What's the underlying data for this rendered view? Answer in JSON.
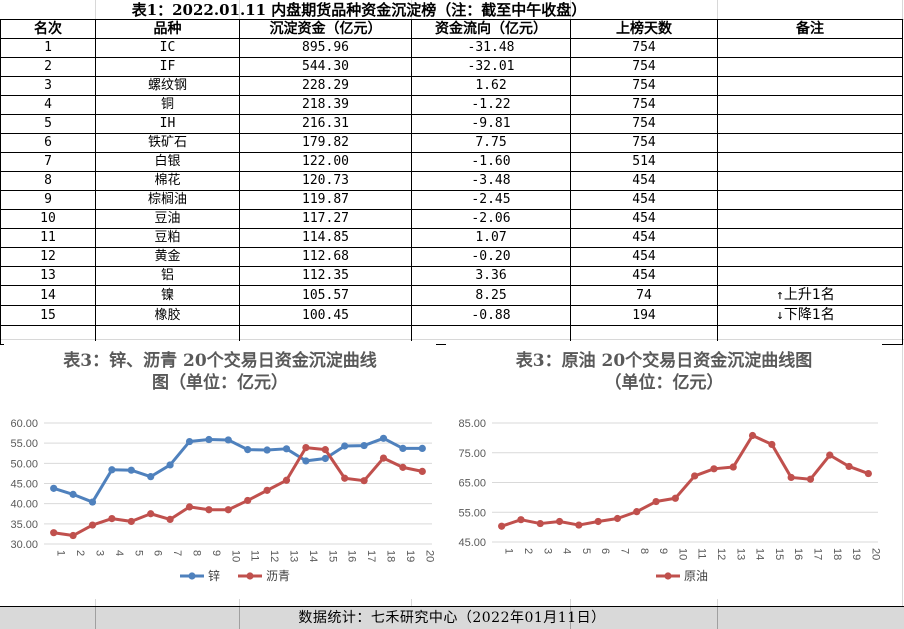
{
  "sheet": {
    "title": "表1：2022.01.11 内盘期货品种资金沉淀榜（注：截至中午收盘）",
    "headers": [
      "名次",
      "品种",
      "沉淀资金（亿元）",
      "资金流向（亿元）",
      "上榜天数",
      "备注"
    ],
    "rows": [
      {
        "rank": "1",
        "name": "IC",
        "fund": "895.96",
        "flow": "-31.48",
        "days": "754",
        "note": ""
      },
      {
        "rank": "2",
        "name": "IF",
        "fund": "544.30",
        "flow": "-32.01",
        "days": "754",
        "note": ""
      },
      {
        "rank": "3",
        "name": "螺纹钢",
        "fund": "228.29",
        "flow": "1.62",
        "days": "754",
        "note": ""
      },
      {
        "rank": "4",
        "name": "铜",
        "fund": "218.39",
        "flow": "-1.22",
        "days": "754",
        "note": ""
      },
      {
        "rank": "5",
        "name": "IH",
        "fund": "216.31",
        "flow": "-9.81",
        "days": "754",
        "note": ""
      },
      {
        "rank": "6",
        "name": "铁矿石",
        "fund": "179.82",
        "flow": "7.75",
        "days": "754",
        "note": ""
      },
      {
        "rank": "7",
        "name": "白银",
        "fund": "122.00",
        "flow": "-1.60",
        "days": "514",
        "note": ""
      },
      {
        "rank": "8",
        "name": "棉花",
        "fund": "120.73",
        "flow": "-3.48",
        "days": "454",
        "note": ""
      },
      {
        "rank": "9",
        "name": "棕榈油",
        "fund": "119.87",
        "flow": "-2.45",
        "days": "454",
        "note": ""
      },
      {
        "rank": "10",
        "name": "豆油",
        "fund": "117.27",
        "flow": "-2.06",
        "days": "454",
        "note": ""
      },
      {
        "rank": "11",
        "name": "豆粕",
        "fund": "114.85",
        "flow": "1.07",
        "days": "454",
        "note": ""
      },
      {
        "rank": "12",
        "name": "黄金",
        "fund": "112.68",
        "flow": "-0.20",
        "days": "454",
        "note": ""
      },
      {
        "rank": "13",
        "name": "铝",
        "fund": "112.35",
        "flow": "3.36",
        "days": "454",
        "note": ""
      },
      {
        "rank": "14",
        "name": "镍",
        "fund": "105.57",
        "flow": "8.25",
        "days": "74",
        "note": "上升1名",
        "arrow": "↑"
      },
      {
        "rank": "15",
        "name": "橡胶",
        "fund": "100.45",
        "flow": "-0.88",
        "days": "194",
        "note": "下降1名",
        "arrow": "↓"
      }
    ],
    "footer": "数据统计：七禾研究中心（2022年01月11日）"
  },
  "chart_data": [
    {
      "type": "line",
      "title_line1": "表3：锌、沥青 20个交易日资金沉淀曲线",
      "title_line2": "图（单位：亿元）",
      "x": [
        1,
        2,
        3,
        4,
        5,
        6,
        7,
        8,
        9,
        10,
        11,
        12,
        13,
        14,
        15,
        16,
        17,
        18,
        19,
        20
      ],
      "ylim": [
        30,
        60
      ],
      "yticks": [
        "30.00",
        "35.00",
        "40.00",
        "45.00",
        "50.00",
        "55.00",
        "60.00"
      ],
      "series": [
        {
          "name": "锌",
          "color": "#4f81bd",
          "values": [
            43.8,
            42.3,
            40.4,
            48.4,
            48.3,
            46.7,
            49.6,
            55.4,
            55.9,
            55.8,
            53.4,
            53.3,
            53.6,
            50.6,
            51.2,
            54.3,
            54.4,
            56.2,
            53.7,
            53.7
          ]
        },
        {
          "name": "沥青",
          "color": "#c0504d",
          "values": [
            32.8,
            32.1,
            34.7,
            36.3,
            35.6,
            37.5,
            36.1,
            39.2,
            38.5,
            38.5,
            40.8,
            43.3,
            45.8,
            53.9,
            53.4,
            46.3,
            45.7,
            51.3,
            49.0,
            48.0
          ]
        }
      ],
      "legend": "bottom",
      "grid": true
    },
    {
      "type": "line",
      "title_line1": "表3：原油 20个交易日资金沉淀曲线图",
      "title_line2": "（单位：亿元）",
      "x": [
        1,
        2,
        3,
        4,
        5,
        6,
        7,
        8,
        9,
        10,
        11,
        12,
        13,
        14,
        15,
        16,
        17,
        18,
        19,
        20
      ],
      "ylim": [
        45,
        85
      ],
      "yticks": [
        "45.00",
        "55.00",
        "65.00",
        "75.00",
        "85.00"
      ],
      "series": [
        {
          "name": "原油",
          "color": "#c0504d",
          "values": [
            50.3,
            52.5,
            51.2,
            51.9,
            50.7,
            51.9,
            52.9,
            55.2,
            58.6,
            59.7,
            67.2,
            69.6,
            70.2,
            80.8,
            77.8,
            66.7,
            66.1,
            74.2,
            70.4,
            68.0
          ]
        }
      ],
      "legend": "bottom",
      "grid": true
    }
  ]
}
